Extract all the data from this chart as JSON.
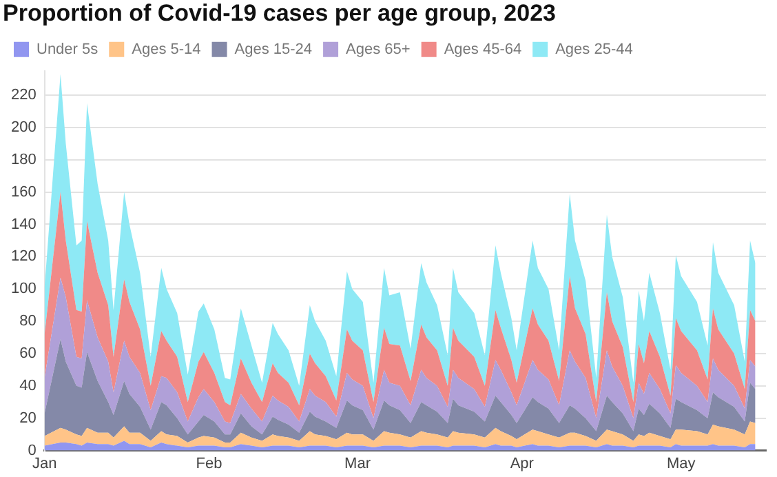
{
  "chart_data": {
    "type": "area",
    "title": "Proportion of Covid-19 cases per age group, 2023",
    "stacked": true,
    "x": [
      "2023-01-01",
      "2023-01-04",
      "2023-01-05",
      "2023-01-07",
      "2023-01-08",
      "2023-01-09",
      "2023-01-11",
      "2023-01-13",
      "2023-01-14",
      "2023-01-16",
      "2023-01-17",
      "2023-01-19",
      "2023-01-21",
      "2023-01-23",
      "2023-01-24",
      "2023-01-26",
      "2023-01-28",
      "2023-01-30",
      "2023-01-31",
      "2023-02-02",
      "2023-02-04",
      "2023-02-05",
      "2023-02-07",
      "2023-02-09",
      "2023-02-11",
      "2023-02-13",
      "2023-02-14",
      "2023-02-16",
      "2023-02-18",
      "2023-02-20",
      "2023-02-21",
      "2023-02-23",
      "2023-02-25",
      "2023-02-27",
      "2023-02-28",
      "2023-03-02",
      "2023-03-04",
      "2023-03-06",
      "2023-03-07",
      "2023-03-09",
      "2023-03-11",
      "2023-03-13",
      "2023-03-14",
      "2023-03-16",
      "2023-03-18",
      "2023-03-19",
      "2023-03-20",
      "2023-03-23",
      "2023-03-25",
      "2023-03-27",
      "2023-03-28",
      "2023-03-30",
      "2023-03-31",
      "2023-04-03",
      "2023-04-04",
      "2023-04-06",
      "2023-04-08",
      "2023-04-10",
      "2023-04-11",
      "2023-04-13",
      "2023-04-15",
      "2023-04-17",
      "2023-04-18",
      "2023-04-20",
      "2023-04-22",
      "2023-04-23",
      "2023-04-24",
      "2023-04-25",
      "2023-04-27",
      "2023-04-29",
      "2023-04-30",
      "2023-05-01",
      "2023-05-04",
      "2023-05-06",
      "2023-05-07",
      "2023-05-08",
      "2023-05-11",
      "2023-05-13",
      "2023-05-14",
      "2023-05-15"
    ],
    "series": [
      {
        "name": "Under 5s",
        "color": "#9196f0",
        "values": [
          3,
          5,
          5,
          4,
          3,
          5,
          4,
          4,
          3,
          6,
          4,
          4,
          2,
          5,
          4,
          3,
          2,
          3,
          3,
          3,
          2,
          2,
          4,
          3,
          2,
          3,
          3,
          3,
          2,
          3,
          3,
          3,
          2,
          3,
          3,
          3,
          2,
          3,
          3,
          3,
          2,
          3,
          3,
          3,
          2,
          3,
          3,
          3,
          2,
          4,
          3,
          3,
          2,
          4,
          3,
          3,
          2,
          3,
          3,
          3,
          2,
          4,
          3,
          3,
          2,
          3,
          3,
          3,
          3,
          2,
          4,
          3,
          3,
          3,
          4,
          3,
          3,
          2,
          4,
          4
        ]
      },
      {
        "name": "Ages 5-14",
        "color": "#ffc488",
        "values": [
          6,
          9,
          8,
          6,
          6,
          9,
          7,
          7,
          5,
          9,
          7,
          7,
          4,
          7,
          6,
          6,
          3,
          5,
          6,
          5,
          3,
          3,
          7,
          5,
          4,
          7,
          6,
          5,
          4,
          9,
          7,
          6,
          5,
          8,
          7,
          7,
          4,
          9,
          8,
          7,
          6,
          9,
          8,
          7,
          6,
          9,
          8,
          7,
          6,
          10,
          9,
          6,
          5,
          9,
          9,
          7,
          6,
          8,
          8,
          6,
          4,
          9,
          9,
          7,
          4,
          7,
          6,
          8,
          6,
          5,
          9,
          10,
          9,
          7,
          12,
          12,
          10,
          8,
          14,
          13
        ]
      },
      {
        "name": "Ages 15-24",
        "color": "#8489a8",
        "values": [
          14,
          55,
          42,
          30,
          30,
          47,
          32,
          19,
          14,
          28,
          24,
          16,
          7,
          18,
          18,
          11,
          5,
          10,
          13,
          10,
          5,
          5,
          12,
          7,
          4,
          11,
          10,
          8,
          5,
          12,
          11,
          9,
          7,
          20,
          18,
          15,
          7,
          19,
          17,
          15,
          9,
          18,
          17,
          14,
          9,
          20,
          17,
          14,
          10,
          20,
          18,
          13,
          10,
          20,
          18,
          16,
          9,
          17,
          15,
          11,
          6,
          21,
          18,
          13,
          6,
          16,
          13,
          18,
          14,
          7,
          19,
          17,
          13,
          10,
          20,
          18,
          14,
          8,
          24,
          21
        ]
      },
      {
        "name": "Ages 65+",
        "color": "#b0a0d8",
        "values": [
          22,
          38,
          40,
          18,
          18,
          32,
          27,
          25,
          14,
          25,
          23,
          21,
          12,
          16,
          17,
          16,
          8,
          15,
          16,
          12,
          8,
          7,
          12,
          11,
          8,
          13,
          12,
          11,
          7,
          14,
          13,
          12,
          7,
          17,
          16,
          15,
          7,
          19,
          14,
          15,
          11,
          20,
          17,
          16,
          10,
          18,
          17,
          14,
          9,
          22,
          20,
          14,
          11,
          23,
          20,
          18,
          11,
          34,
          29,
          25,
          8,
          28,
          22,
          17,
          8,
          16,
          13,
          19,
          15,
          9,
          21,
          18,
          15,
          10,
          21,
          17,
          13,
          8,
          14,
          14
        ]
      },
      {
        "name": "Ages 45-64",
        "color": "#f08a88",
        "values": [
          27,
          53,
          35,
          29,
          29,
          49,
          40,
          35,
          22,
          38,
          34,
          27,
          15,
          28,
          23,
          22,
          12,
          22,
          23,
          18,
          12,
          11,
          22,
          16,
          12,
          20,
          17,
          15,
          10,
          22,
          20,
          16,
          10,
          27,
          24,
          22,
          10,
          26,
          24,
          25,
          15,
          28,
          25,
          22,
          13,
          26,
          23,
          20,
          13,
          31,
          26,
          20,
          14,
          32,
          28,
          24,
          15,
          46,
          33,
          27,
          10,
          36,
          28,
          24,
          10,
          24,
          19,
          26,
          20,
          11,
          29,
          26,
          22,
          14,
          31,
          25,
          20,
          12,
          31,
          28
        ]
      },
      {
        "name": "Ages 25-44",
        "color": "#8ee9f5",
        "values": [
          29,
          73,
          60,
          40,
          44,
          73,
          55,
          40,
          29,
          54,
          48,
          35,
          18,
          39,
          32,
          27,
          17,
          31,
          30,
          27,
          15,
          16,
          31,
          23,
          12,
          25,
          24,
          20,
          12,
          30,
          26,
          22,
          15,
          36,
          32,
          30,
          12,
          37,
          30,
          33,
          20,
          38,
          34,
          28,
          19,
          37,
          30,
          27,
          19,
          40,
          34,
          26,
          20,
          42,
          35,
          32,
          19,
          51,
          42,
          33,
          15,
          48,
          40,
          31,
          12,
          33,
          26,
          36,
          27,
          16,
          39,
          34,
          30,
          21,
          41,
          35,
          30,
          17,
          43,
          36
        ]
      }
    ],
    "xlim": [
      "2023-01-01",
      "2023-05-17"
    ],
    "xticks": [
      {
        "value": "2023-01-01",
        "label": "Jan"
      },
      {
        "value": "2023-02-01",
        "label": "Feb"
      },
      {
        "value": "2023-03-01",
        "label": "Mar"
      },
      {
        "value": "2023-04-01",
        "label": "Apr"
      },
      {
        "value": "2023-05-01",
        "label": "May"
      }
    ],
    "ylim": [
      0,
      235
    ],
    "yticks": [
      0,
      20,
      40,
      60,
      80,
      100,
      120,
      140,
      160,
      180,
      200,
      220
    ],
    "grid": "y",
    "legend": "top left"
  }
}
